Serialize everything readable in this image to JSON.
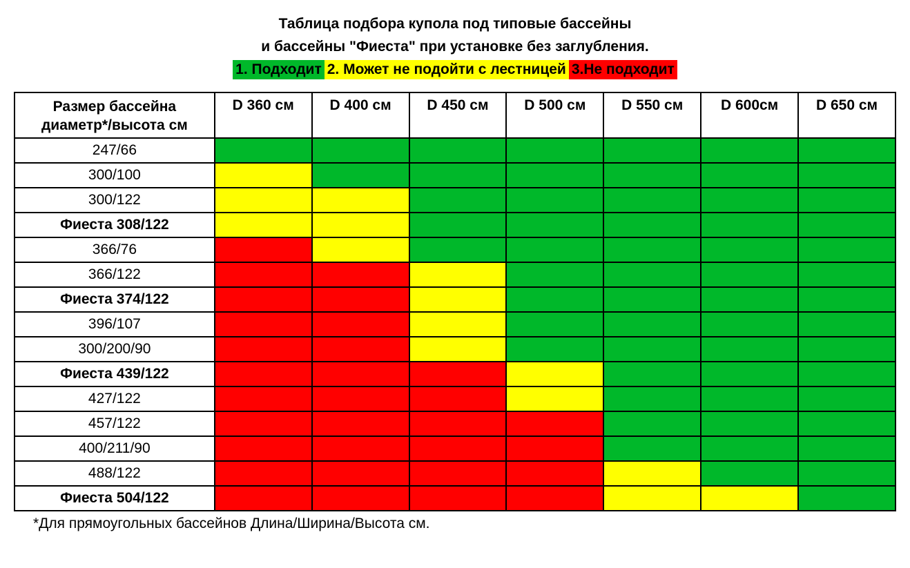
{
  "title_line1": "Таблица подбора купола под типовые бассейны",
  "title_line2": "и бассейны \"Фиеста\" при установке без заглубления.",
  "legend": {
    "fits": {
      "label": "1. Подходит",
      "color": "#00b82a"
    },
    "maybe": {
      "label": "2. Может не подойти с лестницей",
      "color": "#ffff00"
    },
    "no": {
      "label": "3.Не подходит",
      "color": "#ff0000"
    }
  },
  "colors": {
    "green": "#00b82a",
    "yellow": "#ffff00",
    "red": "#ff0000",
    "white": "#ffffff",
    "black": "#000000"
  },
  "table": {
    "row_header": "Размер бассейна диаметр*/высота см",
    "columns": [
      "D 360 см",
      "D 400 см",
      "D 450 см",
      "D 500 см",
      "D 550 см",
      "D 600см",
      "D 650 см"
    ],
    "col_widths": {
      "label": 290,
      "data": 141
    },
    "rows": [
      {
        "label": "247/66",
        "bold": false,
        "cells": [
          "green",
          "green",
          "green",
          "green",
          "green",
          "green",
          "green"
        ]
      },
      {
        "label": "300/100",
        "bold": false,
        "cells": [
          "yellow",
          "green",
          "green",
          "green",
          "green",
          "green",
          "green"
        ]
      },
      {
        "label": "300/122",
        "bold": false,
        "cells": [
          "yellow",
          "yellow",
          "green",
          "green",
          "green",
          "green",
          "green"
        ]
      },
      {
        "label": "Фиеста 308/122",
        "bold": true,
        "cells": [
          "yellow",
          "yellow",
          "green",
          "green",
          "green",
          "green",
          "green"
        ]
      },
      {
        "label": "366/76",
        "bold": false,
        "cells": [
          "red",
          "yellow",
          "green",
          "green",
          "green",
          "green",
          "green"
        ]
      },
      {
        "label": "366/122",
        "bold": false,
        "cells": [
          "red",
          "red",
          "yellow",
          "green",
          "green",
          "green",
          "green"
        ]
      },
      {
        "label": "Фиеста 374/122",
        "bold": true,
        "cells": [
          "red",
          "red",
          "yellow",
          "green",
          "green",
          "green",
          "green"
        ]
      },
      {
        "label": "396/107",
        "bold": false,
        "cells": [
          "red",
          "red",
          "yellow",
          "green",
          "green",
          "green",
          "green"
        ]
      },
      {
        "label": "300/200/90",
        "bold": false,
        "cells": [
          "red",
          "red",
          "yellow",
          "green",
          "green",
          "green",
          "green"
        ]
      },
      {
        "label": "Фиеста 439/122",
        "bold": true,
        "cells": [
          "red",
          "red",
          "red",
          "yellow",
          "green",
          "green",
          "green"
        ]
      },
      {
        "label": "427/122",
        "bold": false,
        "cells": [
          "red",
          "red",
          "red",
          "yellow",
          "green",
          "green",
          "green"
        ]
      },
      {
        "label": "457/122",
        "bold": false,
        "cells": [
          "red",
          "red",
          "red",
          "red",
          "green",
          "green",
          "green"
        ]
      },
      {
        "label": "400/211/90",
        "bold": false,
        "cells": [
          "red",
          "red",
          "red",
          "red",
          "green",
          "green",
          "green"
        ]
      },
      {
        "label": "488/122",
        "bold": false,
        "cells": [
          "red",
          "red",
          "red",
          "red",
          "yellow",
          "green",
          "green"
        ]
      },
      {
        "label": "Фиеста 504/122",
        "bold": true,
        "cells": [
          "red",
          "red",
          "red",
          "red",
          "yellow",
          "yellow",
          "green"
        ]
      }
    ]
  },
  "footnote": "*Для прямоугольных бассейнов Длина/Ширина/Высота см."
}
